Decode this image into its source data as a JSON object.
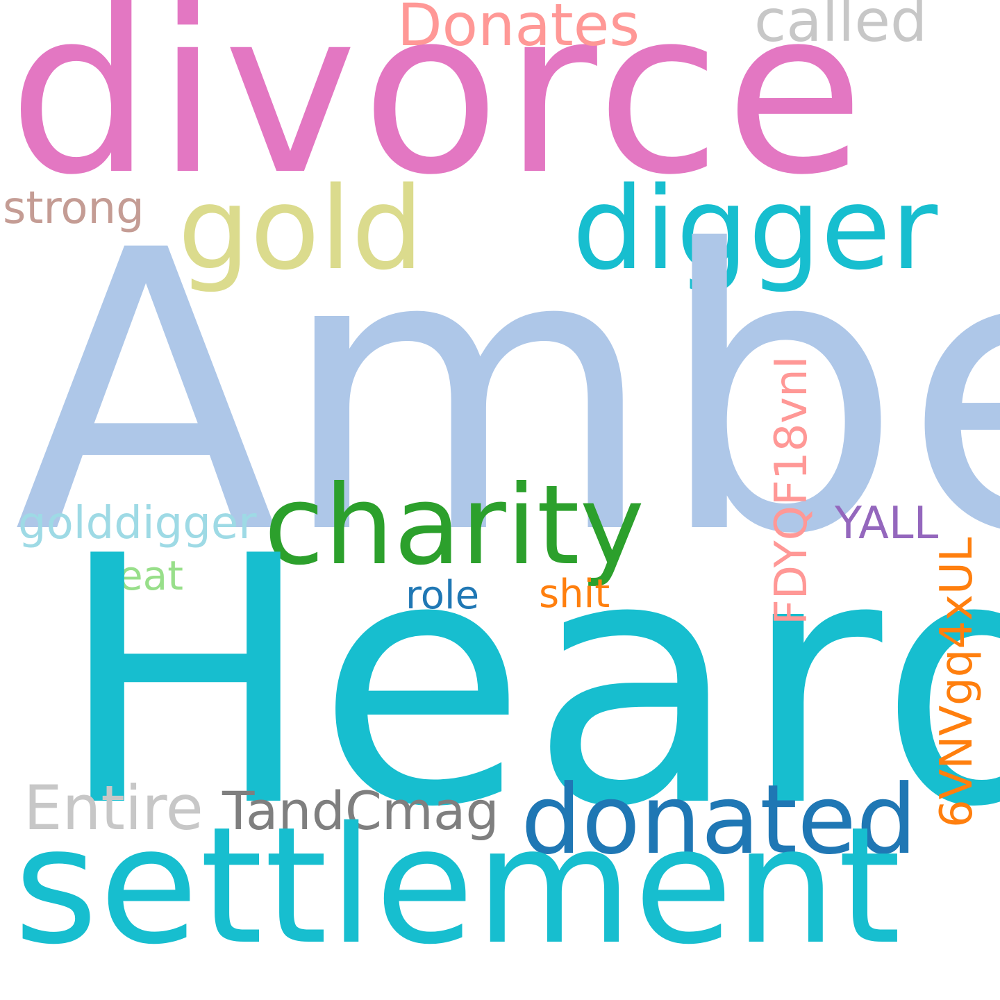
{
  "cloud": {
    "words": [
      {
        "id": "divorce",
        "text": "divorce",
        "color": "#e377c2"
      },
      {
        "id": "donates",
        "text": "Donates",
        "color": "#ff9896"
      },
      {
        "id": "called",
        "text": "called",
        "color": "#c7c7c7"
      },
      {
        "id": "gold",
        "text": "gold",
        "color": "#dbdb8d"
      },
      {
        "id": "digger",
        "text": "digger",
        "color": "#17becf"
      },
      {
        "id": "strong",
        "text": "strong",
        "color": "#c49c94"
      },
      {
        "id": "amber",
        "text": "Amber",
        "color": "#aec7e8"
      },
      {
        "id": "charity",
        "text": "charity",
        "color": "#2ca02c"
      },
      {
        "id": "golddigger",
        "text": "golddigger",
        "color": "#9edae5"
      },
      {
        "id": "yall",
        "text": "YALL",
        "color": "#9467bd"
      },
      {
        "id": "eat",
        "text": "eat",
        "color": "#98df8a"
      },
      {
        "id": "role",
        "text": "role",
        "color": "#1f77b4"
      },
      {
        "id": "shit",
        "text": "shit",
        "color": "#ff7f0e"
      },
      {
        "id": "heard",
        "text": "Heard",
        "color": "#17becf"
      },
      {
        "id": "fdyq",
        "text": "FDYQF18vnI",
        "color": "#ff9896"
      },
      {
        "id": "6vnv",
        "text": "6VNVgq4xUL",
        "color": "#ff7f0e"
      },
      {
        "id": "entire",
        "text": "Entire",
        "color": "#c7c7c7"
      },
      {
        "id": "tandcmag",
        "text": "TandCmag",
        "color": "#7f7f7f"
      },
      {
        "id": "donated",
        "text": "donated",
        "color": "#1f77b4"
      },
      {
        "id": "settlement",
        "text": "settlement",
        "color": "#17becf"
      }
    ]
  }
}
